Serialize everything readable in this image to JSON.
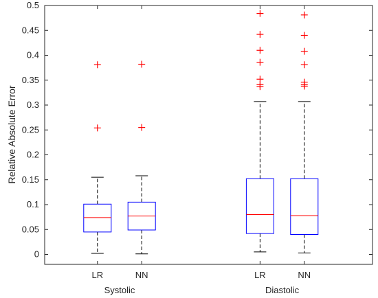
{
  "chart_data": {
    "type": "box",
    "ylabel": "Relative Absolute Error",
    "xlabel": "",
    "title": "",
    "ylim": [
      -0.02,
      0.5
    ],
    "yticks": [
      0,
      0.05,
      0.1,
      0.15,
      0.2,
      0.25,
      0.3,
      0.35,
      0.4,
      0.45,
      0.5
    ],
    "ytick_labels": [
      "0",
      "0.05",
      "0.1",
      "0.15",
      "0.2",
      "0.25",
      "0.3",
      "0.35",
      "0.4",
      "0.45",
      "0.5"
    ],
    "groups": [
      {
        "label": "Systolic",
        "boxes": [
          {
            "label": "LR",
            "whisker_low": 0.002,
            "q1": 0.045,
            "median": 0.074,
            "q3": 0.101,
            "whisker_high": 0.155,
            "outliers": [
              0.254,
              0.381
            ]
          },
          {
            "label": "NN",
            "whisker_low": 0.001,
            "q1": 0.049,
            "median": 0.077,
            "q3": 0.105,
            "whisker_high": 0.158,
            "outliers": [
              0.255,
              0.382
            ]
          }
        ]
      },
      {
        "label": "Diastolic",
        "boxes": [
          {
            "label": "LR",
            "whisker_low": 0.005,
            "q1": 0.042,
            "median": 0.08,
            "q3": 0.152,
            "whisker_high": 0.307,
            "outliers": [
              0.337,
              0.341,
              0.352,
              0.386,
              0.41,
              0.442,
              0.484
            ]
          },
          {
            "label": "NN",
            "whisker_low": 0.003,
            "q1": 0.04,
            "median": 0.078,
            "q3": 0.152,
            "whisker_high": 0.307,
            "outliers": [
              0.338,
              0.341,
              0.346,
              0.381,
              0.408,
              0.44,
              0.481
            ]
          }
        ]
      }
    ],
    "colors": {
      "box": "#0000ff",
      "median": "#ff0000",
      "whisker": "#000000",
      "outlier": "#ff0000",
      "axis": "#262626"
    },
    "grid": false,
    "legend": "none"
  }
}
